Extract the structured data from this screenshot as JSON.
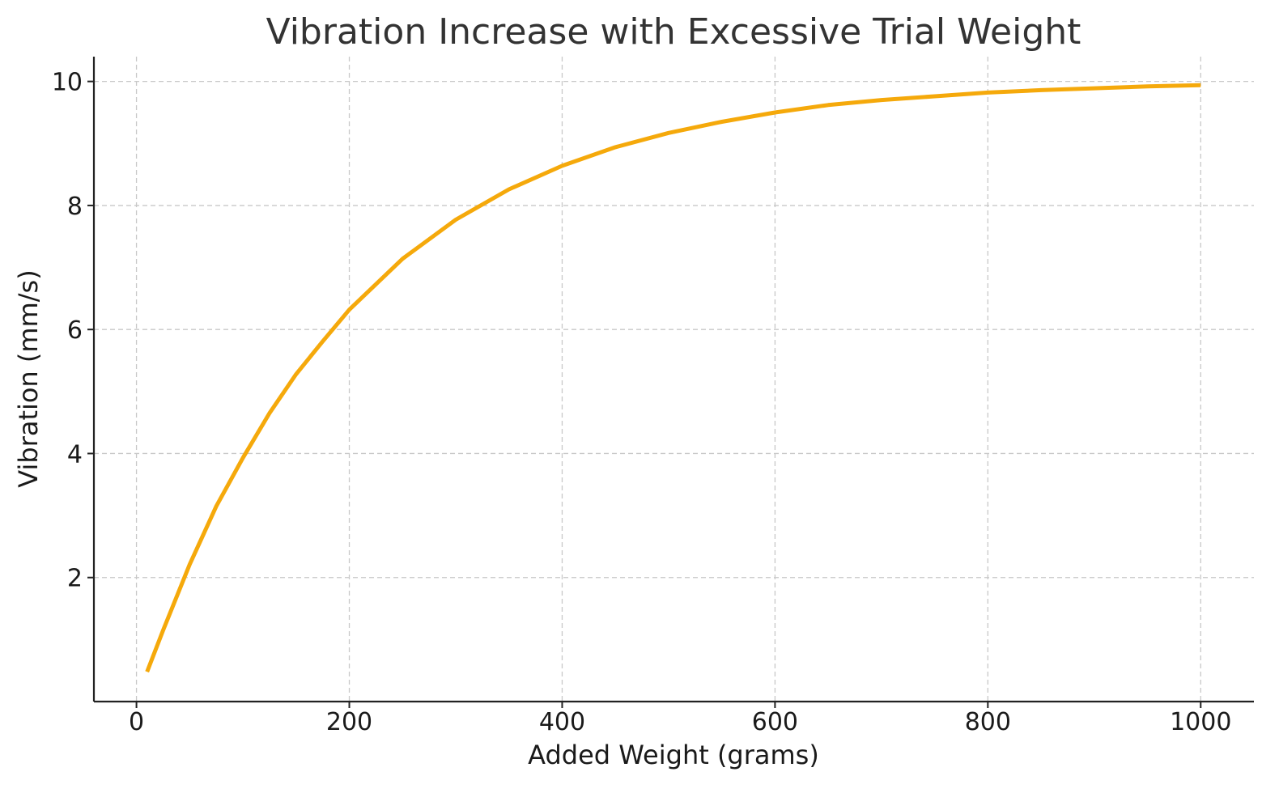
{
  "chart_data": {
    "type": "line",
    "title": "Vibration Increase with Excessive Trial Weight",
    "xlabel": "Added Weight (grams)",
    "ylabel": "Vibration (mm/s)",
    "xlim": [
      -40,
      1050
    ],
    "ylim": [
      0,
      10.4
    ],
    "xticks": [
      0,
      200,
      400,
      600,
      800,
      1000
    ],
    "yticks": [
      2,
      4,
      6,
      8,
      10
    ],
    "grid": true,
    "colors": {
      "line": "#f5a90b"
    },
    "series": [
      {
        "x": [
          10,
          25,
          50,
          75,
          100,
          125,
          150,
          175,
          200,
          250,
          300,
          350,
          400,
          450,
          500,
          550,
          600,
          650,
          700,
          750,
          800,
          850,
          900,
          950,
          1000
        ],
        "y": [
          0.48,
          1.15,
          2.21,
          3.15,
          3.93,
          4.65,
          5.28,
          5.81,
          6.32,
          7.14,
          7.77,
          8.26,
          8.64,
          8.94,
          9.17,
          9.35,
          9.5,
          9.62,
          9.7,
          9.76,
          9.82,
          9.86,
          9.89,
          9.92,
          9.94
        ]
      }
    ]
  }
}
